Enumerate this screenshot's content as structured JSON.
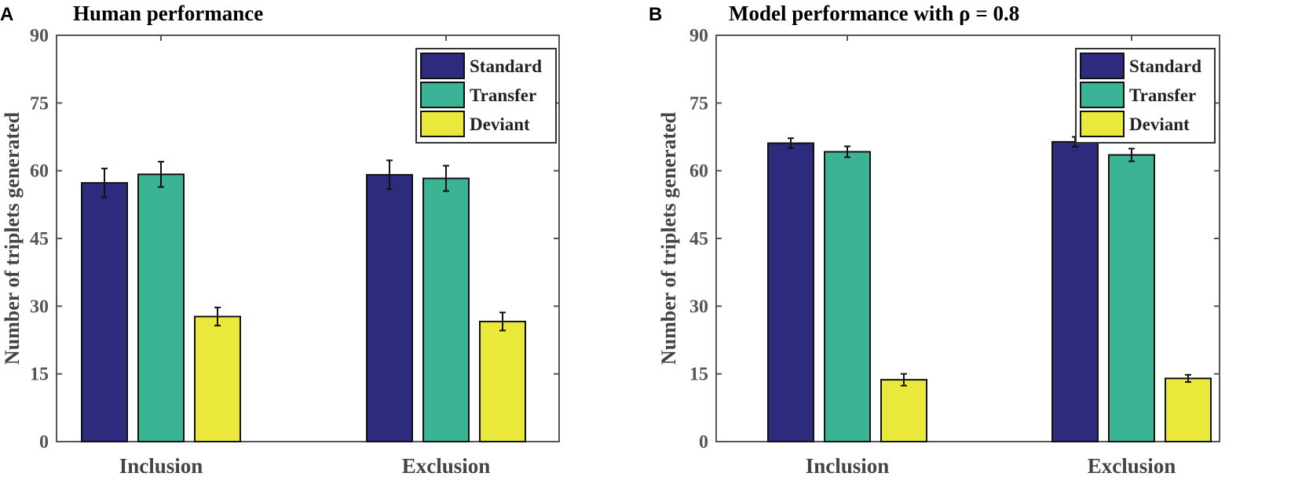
{
  "chart_data": [
    {
      "panel": "A",
      "title": "Human performance",
      "type": "bar",
      "categories": [
        "Inclusion",
        "Exclusion"
      ],
      "series": [
        {
          "name": "Standard",
          "values": [
            57.3,
            59.1
          ],
          "errors": [
            3.2,
            3.2
          ]
        },
        {
          "name": "Transfer",
          "values": [
            59.2,
            58.3
          ],
          "errors": [
            2.8,
            2.8
          ]
        },
        {
          "name": "Deviant",
          "values": [
            27.7,
            26.6
          ],
          "errors": [
            2.0,
            2.0
          ]
        }
      ],
      "xlabel": "",
      "ylabel": "Number of triplets generated",
      "ylim": [
        0,
        90
      ],
      "yticks": [
        0,
        15,
        30,
        45,
        60,
        75,
        90
      ],
      "legend_position": "top-right"
    },
    {
      "panel": "B",
      "title": "Model performance with ρ = 0.8",
      "type": "bar",
      "categories": [
        "Inclusion",
        "Exclusion"
      ],
      "series": [
        {
          "name": "Standard",
          "values": [
            66.1,
            66.4
          ],
          "errors": [
            1.1,
            1.1
          ]
        },
        {
          "name": "Transfer",
          "values": [
            64.2,
            63.5
          ],
          "errors": [
            1.2,
            1.4
          ]
        },
        {
          "name": "Deviant",
          "values": [
            13.7,
            14.0
          ],
          "errors": [
            1.3,
            0.8
          ]
        }
      ],
      "xlabel": "",
      "ylabel": "Number of triplets generated",
      "ylim": [
        0,
        90
      ],
      "yticks": [
        0,
        15,
        30,
        45,
        60,
        75,
        90
      ],
      "legend_position": "top-right"
    }
  ],
  "colors": {
    "Standard": "#2e2a7e",
    "Transfer": "#3ab495",
    "Deviant": "#ebe83c",
    "axis": "#555555",
    "bar_edge": "#111111"
  }
}
